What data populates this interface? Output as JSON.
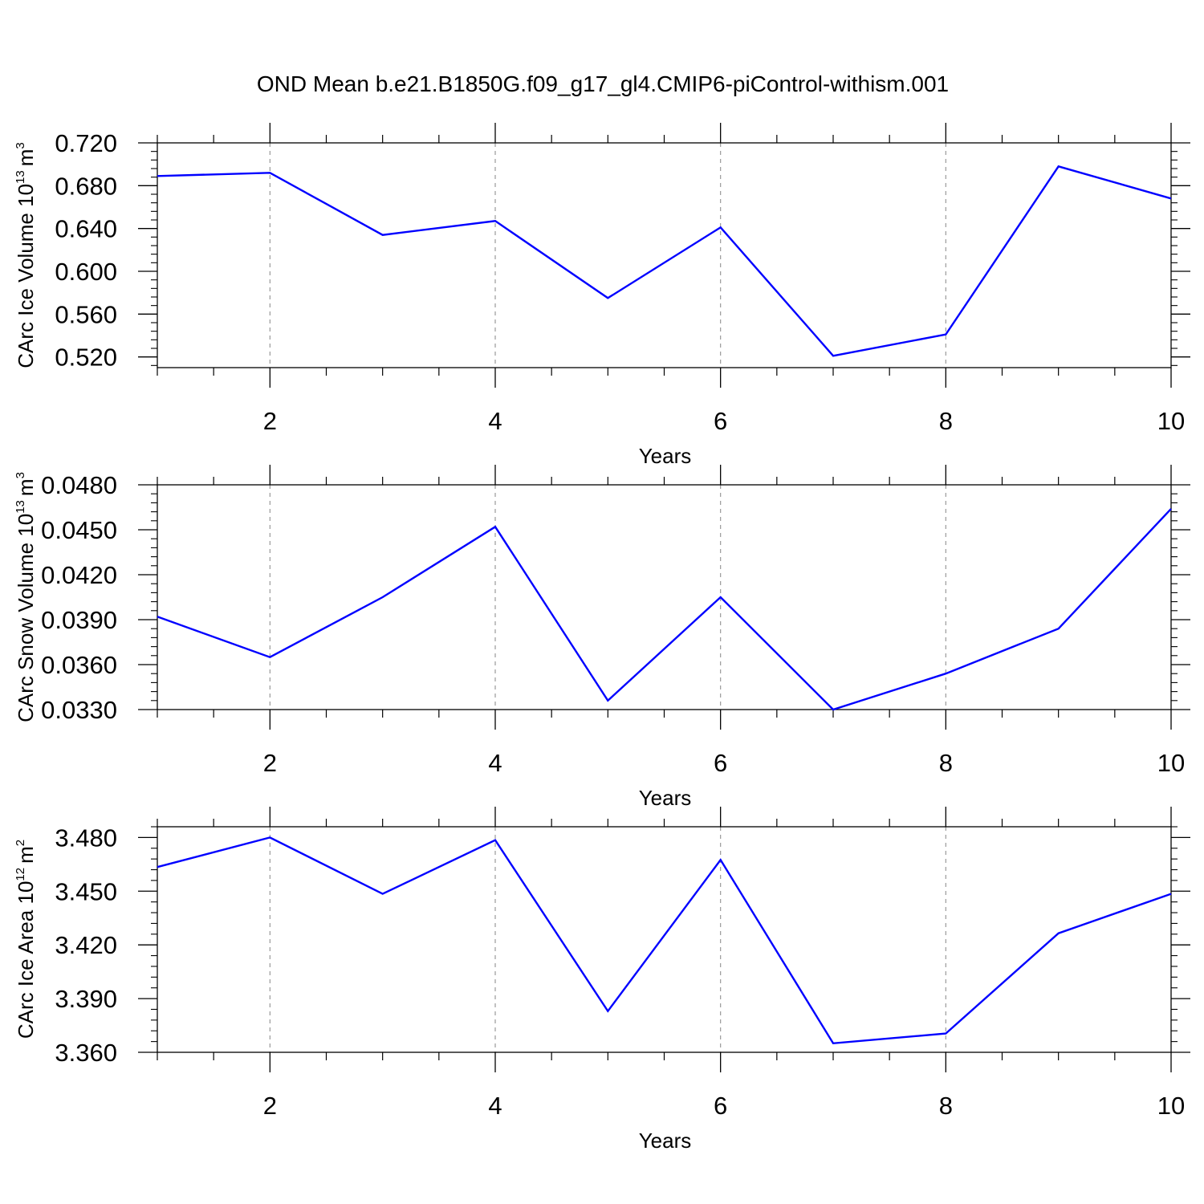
{
  "title": "OND Mean b.e21.B1850G.f09_g17_gl4.CMIP6-piControl-withism.001",
  "colors": {
    "line": "#0000ff",
    "axis": "#000000",
    "grid": "#9a9a9a"
  },
  "chart_data": [
    {
      "type": "line",
      "x": [
        1,
        2,
        3,
        4,
        5,
        6,
        7,
        8,
        9,
        10
      ],
      "y": [
        0.689,
        0.692,
        0.634,
        0.647,
        0.575,
        0.641,
        0.521,
        0.541,
        0.698,
        0.668
      ],
      "xlim": [
        1,
        10
      ],
      "ylim": [
        0.51,
        0.72
      ],
      "xticks": [
        2,
        4,
        6,
        8,
        10
      ],
      "xtick_labels": [
        "2",
        "4",
        "6",
        "8",
        "10"
      ],
      "yticks": [
        0.52,
        0.56,
        0.6,
        0.64,
        0.68,
        0.72
      ],
      "ytick_labels": [
        "0.520",
        "0.560",
        "0.600",
        "0.640",
        "0.680",
        "0.720"
      ],
      "xlabel": "Years",
      "ylabel": {
        "text": "CArc Ice Volume 10",
        "exponent": "13",
        "unit": "m",
        "unit_exponent": "3"
      },
      "grid": "vertical dashed at major x ticks"
    },
    {
      "type": "line",
      "x": [
        1,
        2,
        3,
        4,
        5,
        6,
        7,
        8,
        9,
        10
      ],
      "y": [
        0.0392,
        0.0365,
        0.0405,
        0.0452,
        0.0336,
        0.0405,
        0.033,
        0.0354,
        0.0384,
        0.0464
      ],
      "xlim": [
        1,
        10
      ],
      "ylim": [
        0.033,
        0.048
      ],
      "xticks": [
        2,
        4,
        6,
        8,
        10
      ],
      "xtick_labels": [
        "2",
        "4",
        "6",
        "8",
        "10"
      ],
      "yticks": [
        0.033,
        0.036,
        0.039,
        0.042,
        0.045,
        0.048
      ],
      "ytick_labels": [
        "0.0330",
        "0.0360",
        "0.0390",
        "0.0420",
        "0.0450",
        "0.0480"
      ],
      "xlabel": "Years",
      "ylabel": {
        "text": "CArc Snow Volume 10",
        "exponent": "13",
        "unit": "m",
        "unit_exponent": "3"
      },
      "grid": "vertical dashed at major x ticks"
    },
    {
      "type": "line",
      "x": [
        1,
        2,
        3,
        4,
        5,
        6,
        7,
        8,
        9,
        10
      ],
      "y": [
        3.4635,
        3.48,
        3.4485,
        3.4785,
        3.383,
        3.4675,
        3.365,
        3.3705,
        3.4265,
        3.4485
      ],
      "xlim": [
        1,
        10
      ],
      "ylim": [
        3.36,
        3.486
      ],
      "xticks": [
        2,
        4,
        6,
        8,
        10
      ],
      "xtick_labels": [
        "2",
        "4",
        "6",
        "8",
        "10"
      ],
      "yticks": [
        3.36,
        3.39,
        3.42,
        3.45,
        3.48
      ],
      "ytick_labels": [
        "3.360",
        "3.390",
        "3.420",
        "3.450",
        "3.480"
      ],
      "xlabel": "Years",
      "ylabel": {
        "text": "CArc Ice Area 10",
        "exponent": "12",
        "unit": "m",
        "unit_exponent": "2"
      },
      "grid": "vertical dashed at major x ticks"
    }
  ]
}
